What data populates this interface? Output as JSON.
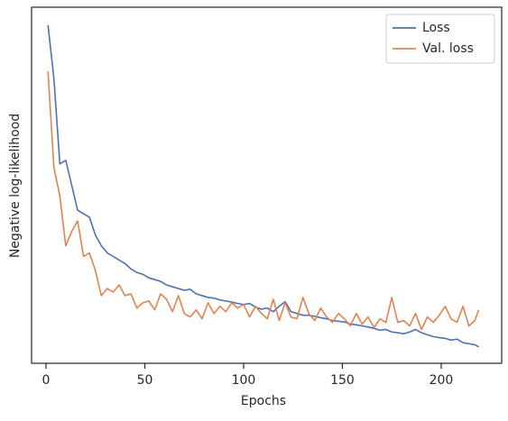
{
  "chart_data": {
    "type": "line",
    "xlabel": "Epochs",
    "ylabel": "Negative log-likelihood",
    "x": [
      1,
      4,
      7,
      10,
      13,
      16,
      19,
      22,
      25,
      28,
      31,
      34,
      37,
      40,
      43,
      46,
      49,
      52,
      55,
      58,
      61,
      64,
      67,
      70,
      73,
      76,
      79,
      82,
      85,
      88,
      91,
      94,
      97,
      100,
      103,
      106,
      109,
      112,
      115,
      118,
      121,
      124,
      127,
      130,
      133,
      136,
      139,
      142,
      145,
      148,
      151,
      154,
      157,
      160,
      163,
      166,
      169,
      172,
      175,
      178,
      181,
      184,
      187,
      190,
      193,
      196,
      199,
      202,
      205,
      208,
      211,
      214,
      217,
      219
    ],
    "series": [
      {
        "name": "Loss",
        "color": "#4c72b0",
        "values": [
          95,
          80,
          56,
          57,
          50,
          43,
          42,
          41,
          36,
          33,
          31,
          30,
          29,
          28,
          26.5,
          25.5,
          25,
          24,
          23.5,
          23,
          22,
          21.5,
          21,
          20.5,
          20.8,
          19.5,
          19,
          18.5,
          18.3,
          17.8,
          17.5,
          17.2,
          16.8,
          16.5,
          16.8,
          15.8,
          15.2,
          15.5,
          14.5,
          16,
          17.3,
          14.5,
          14,
          13.5,
          13.5,
          13.2,
          12.8,
          12.5,
          12,
          11.8,
          11.6,
          11,
          10.8,
          10.5,
          10.2,
          9.8,
          9.3,
          9.5,
          8.8,
          8.6,
          8.3,
          8.8,
          9.5,
          8.6,
          8,
          7.5,
          7.2,
          7,
          6.5,
          6.8,
          5.8,
          5.5,
          5.2,
          4.6
        ]
      },
      {
        "name": "Val. loss",
        "color": "#dd8452",
        "values": [
          82,
          55,
          47,
          33,
          37,
          40,
          30,
          31,
          26,
          19,
          21,
          20,
          22,
          19,
          19.5,
          15.5,
          17,
          17.5,
          15,
          19.5,
          18,
          14.5,
          19,
          14,
          13,
          15,
          12.5,
          17,
          14,
          16,
          14.5,
          17,
          15.5,
          16.5,
          13,
          16,
          14,
          12.5,
          18,
          12,
          17,
          13,
          12.5,
          18.5,
          14,
          12,
          15.5,
          13,
          11.5,
          14,
          12.5,
          10.5,
          14,
          11,
          13,
          10,
          12.5,
          11.5,
          18.5,
          11.5,
          12,
          10.5,
          14,
          9.5,
          13,
          11.5,
          13.5,
          16,
          12.5,
          11.5,
          16,
          10.5,
          12,
          15
        ]
      }
    ],
    "xlim": [
      -7.3,
      230.6
    ],
    "xticks": [
      0,
      50,
      100,
      150,
      200
    ],
    "ylim": [
      0,
      100
    ],
    "legend": "upper right",
    "grid": false
  }
}
